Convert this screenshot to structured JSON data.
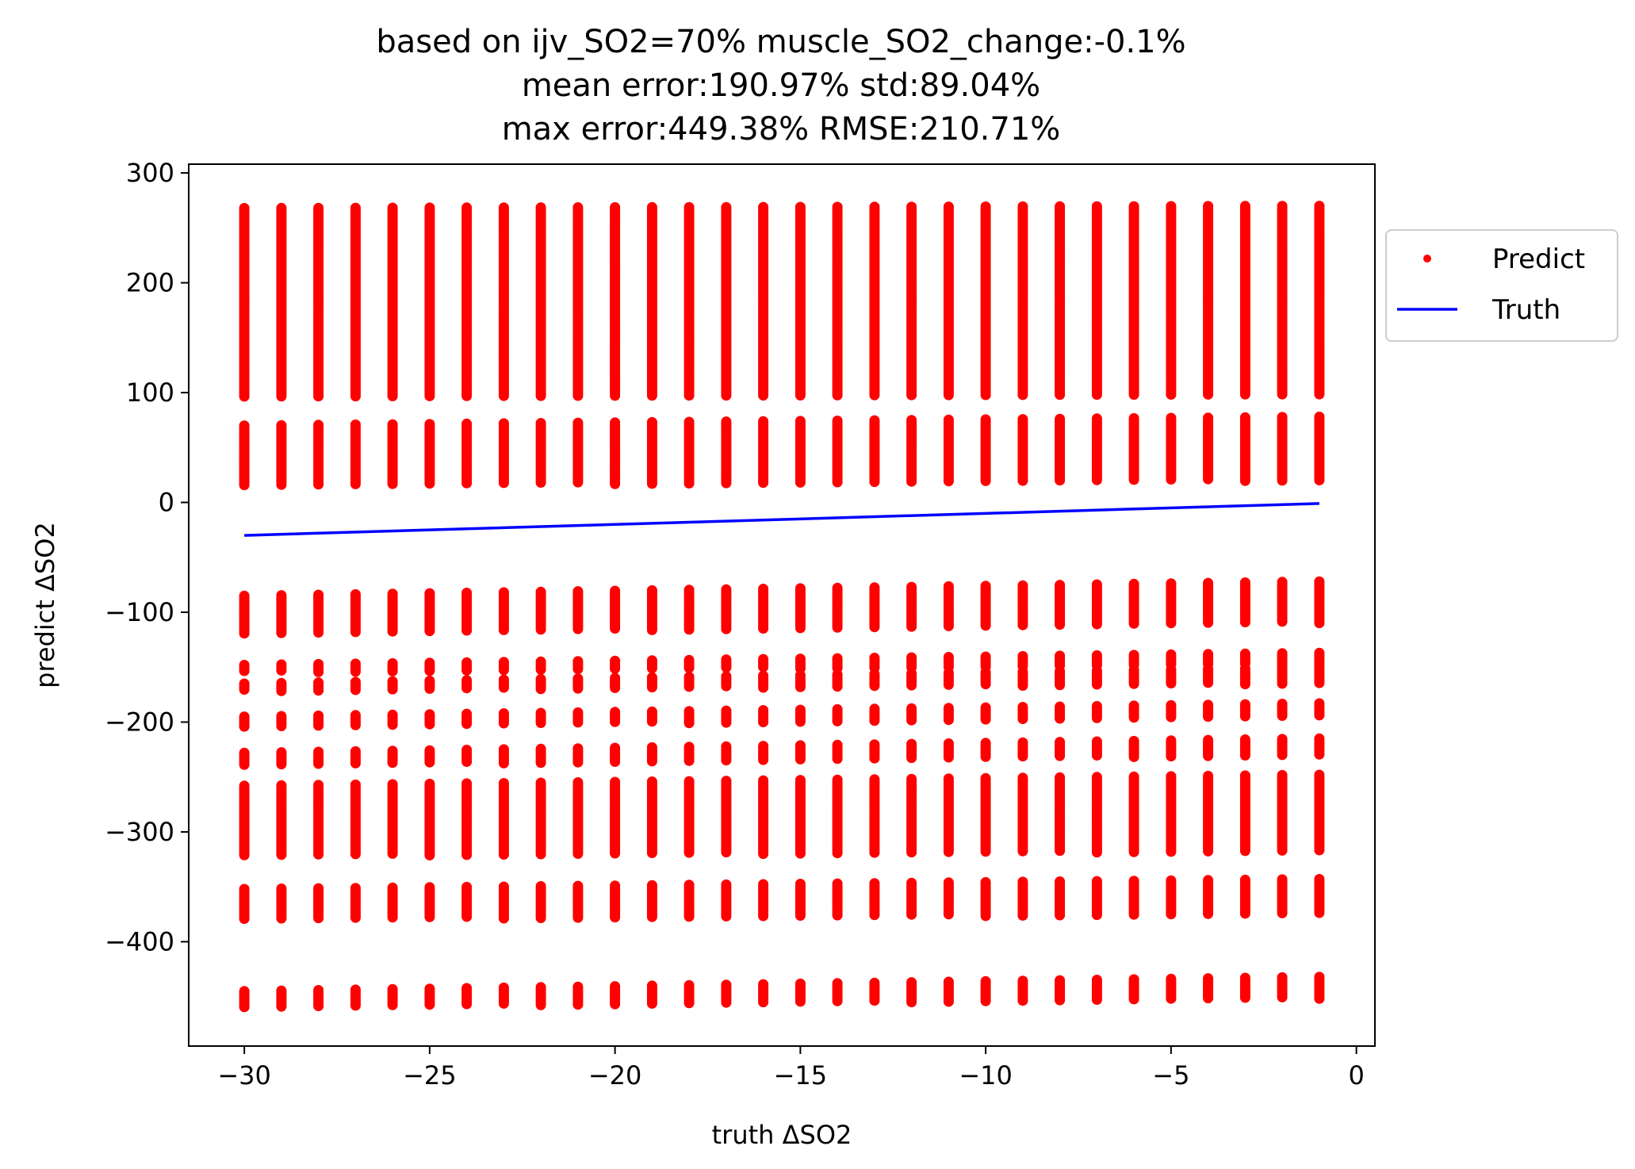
{
  "chart_data": {
    "type": "scatter",
    "title": [
      "based on ijv_SO2=70% muscle_SO2_change:-0.1%",
      "mean error:190.97% std:89.04%",
      "max error:449.38% RMSE:210.71%"
    ],
    "xlabel": "truth ΔSO2",
    "ylabel": "predict ΔSO2",
    "xlim": [
      -31.5,
      0.5
    ],
    "ylim": [
      -495,
      308
    ],
    "xticks": [
      -30,
      -25,
      -20,
      -15,
      -10,
      -5,
      0
    ],
    "xtick_labels": [
      "−30",
      "−25",
      "−20",
      "−15",
      "−10",
      "−5",
      "0"
    ],
    "yticks": [
      300,
      200,
      100,
      0,
      -100,
      -200,
      -300,
      -400
    ],
    "ytick_labels": [
      "300",
      "200",
      "100",
      "0",
      "−100",
      "−200",
      "−300",
      "−400"
    ],
    "grid": false,
    "legend": {
      "placement": "outside-right-top",
      "entries": [
        {
          "label": "Predict",
          "marker": "dot",
          "color": "#ff0000"
        },
        {
          "label": "Truth",
          "marker": "line",
          "color": "#0000ff"
        }
      ]
    },
    "series": [
      {
        "name": "Predict",
        "color": "#ff0000",
        "marker": "dot",
        "x_values": [
          -30,
          -29,
          -28,
          -27,
          -26,
          -25,
          -24,
          -23,
          -22,
          -21,
          -20,
          -19,
          -18,
          -17,
          -16,
          -15,
          -14,
          -13,
          -12,
          -11,
          -10,
          -9,
          -8,
          -7,
          -6,
          -5,
          -4,
          -3,
          -2,
          -1
        ],
        "bands_at_x_start": [
          [
            95,
            268
          ],
          [
            15,
            70
          ],
          [
            -120,
            -85
          ],
          [
            -155,
            -148
          ],
          [
            -172,
            -165
          ],
          [
            -205,
            -195
          ],
          [
            -240,
            -228
          ],
          [
            -322,
            -258
          ],
          [
            -380,
            -352
          ],
          [
            -460,
            -445
          ]
        ],
        "bands_at_x_end": [
          [
            98,
            270
          ],
          [
            20,
            78
          ],
          [
            -110,
            -72
          ],
          [
            -148,
            -137
          ],
          [
            -165,
            -150
          ],
          [
            -195,
            -183
          ],
          [
            -230,
            -215
          ],
          [
            -318,
            -248
          ],
          [
            -375,
            -343
          ],
          [
            -452,
            -432
          ]
        ]
      },
      {
        "name": "Truth",
        "color": "#0000ff",
        "type": "line",
        "x": [
          -30,
          -1
        ],
        "y": [
          -30,
          -1
        ]
      }
    ]
  }
}
